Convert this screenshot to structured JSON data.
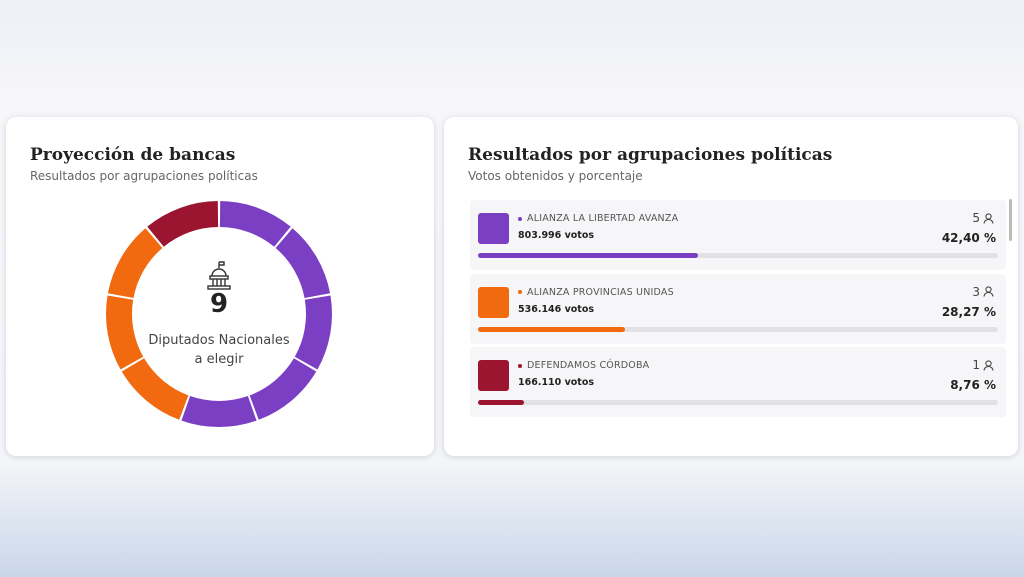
{
  "left_card": {
    "title": "Proyección de bancas",
    "subtitle": "Resultados por agrupaciones políticas",
    "seats_total": 9,
    "seats_label_1": "Diputados Nacionales",
    "seats_label_2": "a elegir"
  },
  "right_card": {
    "title": "Resultados por agrupaciones políticas",
    "subtitle": "Votos obtenidos y porcentaje",
    "parties": [
      {
        "name": "ALIANZA LA LIBERTAD AVANZA",
        "votes": "803.996 votos",
        "seats": 5,
        "percent": 42.4,
        "percent_label": "42,40 %",
        "color": "#7b3fc4"
      },
      {
        "name": "ALIANZA PROVINCIAS UNIDAS",
        "votes": "536.146 votos",
        "seats": 3,
        "percent": 28.27,
        "percent_label": "28,27 %",
        "color": "#f26a0f"
      },
      {
        "name": "DEFENDAMOS CÓRDOBA",
        "votes": "166.110 votos",
        "seats": 1,
        "percent": 8.76,
        "percent_label": "8,76 %",
        "color": "#9b1530"
      }
    ]
  }
}
